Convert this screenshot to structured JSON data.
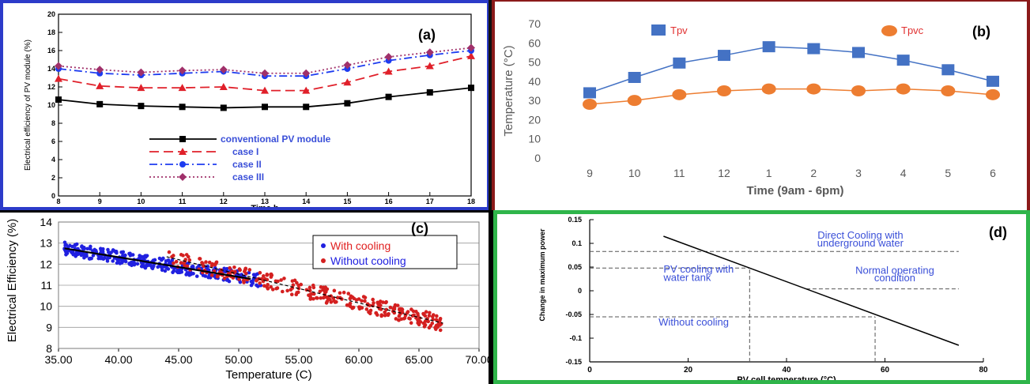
{
  "chart_data": [
    {
      "panel": "(a)",
      "type": "line",
      "title": "",
      "xlabel": "Time h",
      "ylabel": "Electrical efficiency of PV module (%)",
      "xlim": [
        8,
        18
      ],
      "ylim": [
        0,
        20
      ],
      "x_ticks": [
        "8",
        "9",
        "10",
        "11",
        "12",
        "13",
        "14",
        "15",
        "16",
        "17",
        "18"
      ],
      "y_ticks": [
        "0",
        "2",
        "4",
        "6",
        "8",
        "10",
        "12",
        "14",
        "16",
        "18",
        "20"
      ],
      "x": [
        8,
        9,
        10,
        11,
        12,
        13,
        14,
        15,
        16,
        17,
        18
      ],
      "series": [
        {
          "name": "conventional PV module",
          "color": "#000000",
          "style": "solid",
          "marker": "square",
          "values": [
            10.6,
            10.1,
            9.9,
            9.8,
            9.7,
            9.8,
            9.8,
            10.2,
            10.9,
            11.4,
            11.9
          ]
        },
        {
          "name": "case I",
          "color": "#e0202a",
          "style": "dashed",
          "marker": "triangle",
          "values": [
            12.9,
            12.1,
            11.9,
            11.9,
            12.0,
            11.6,
            11.6,
            12.5,
            13.7,
            14.3,
            15.4
          ]
        },
        {
          "name": "case II",
          "color": "#1e3cf0",
          "style": "dashdot",
          "marker": "circle",
          "values": [
            14.0,
            13.5,
            13.3,
            13.5,
            13.7,
            13.2,
            13.2,
            14.0,
            14.9,
            15.5,
            16.0
          ]
        },
        {
          "name": "case III",
          "color": "#a0306a",
          "style": "dotted",
          "marker": "diamond",
          "values": [
            14.3,
            13.9,
            13.6,
            13.8,
            13.9,
            13.5,
            13.5,
            14.4,
            15.3,
            15.8,
            16.3
          ]
        }
      ],
      "legend": "bottom-center",
      "grid": false
    },
    {
      "panel": "(b)",
      "type": "line",
      "title": "",
      "xlabel": "Time (9am - 6pm)",
      "ylabel": "Temperature (°C)",
      "ylim": [
        0,
        70
      ],
      "categories": [
        "9",
        "10",
        "11",
        "12",
        "1",
        "2",
        "3",
        "4",
        "5",
        "6"
      ],
      "y_ticks": [
        "0",
        "10",
        "20",
        "30",
        "40",
        "50",
        "60",
        "70"
      ],
      "series": [
        {
          "name": "Tpv",
          "color": "#4472c4",
          "marker": "square",
          "values": [
            34,
            42,
            49.5,
            53.5,
            58,
            57,
            55,
            51,
            46,
            40
          ]
        },
        {
          "name": "Tpvc",
          "color": "#ed7d31",
          "marker": "circle",
          "values": [
            28,
            30,
            33,
            35,
            36,
            36,
            35,
            36,
            35,
            33
          ]
        }
      ],
      "legend": "top",
      "grid": false
    },
    {
      "panel": "(c)",
      "type": "scatter",
      "title": "",
      "xlabel": "Temperature (C)",
      "ylabel": "Electrical Efficiency (%)",
      "xlim": [
        35,
        70
      ],
      "ylim": [
        8,
        14
      ],
      "x_ticks": [
        "35.00",
        "40.00",
        "45.00",
        "50.00",
        "55.00",
        "60.00",
        "65.00",
        "70.00"
      ],
      "y_ticks": [
        "8",
        "9",
        "10",
        "11",
        "12",
        "13",
        "14"
      ],
      "series": [
        {
          "name": "With cooling",
          "color": "#2020e0",
          "x_range": [
            35.5,
            52
          ],
          "trend": [
            [
              35.5,
              12.75
            ],
            [
              51,
              11.3
            ]
          ]
        },
        {
          "name": "Without cooling",
          "color": "#d42020",
          "x_range": [
            44,
            67
          ],
          "trend": [
            [
              44,
              12.35
            ],
            [
              67,
              9.2
            ]
          ]
        }
      ],
      "legend": "top-right",
      "grid": true
    },
    {
      "panel": "(d)",
      "type": "line",
      "title": "",
      "xlabel": "PV cell temperature (°C)",
      "ylabel": "Change in maximum power",
      "xlim": [
        0,
        80
      ],
      "ylim": [
        -0.15,
        0.15
      ],
      "x_ticks": [
        "0",
        "20",
        "40",
        "60",
        "80"
      ],
      "y_ticks": [
        "0.15",
        "0.1",
        "0.05",
        "0",
        "-0.05",
        "-0.1",
        "-0.15"
      ],
      "series": [
        {
          "name": "",
          "color": "#000000",
          "x": [
            15,
            75
          ],
          "values": [
            0.115,
            -0.115
          ]
        }
      ],
      "annotations": [
        {
          "text": "Direct Cooling with",
          "x": 55,
          "y": 0.11
        },
        {
          "text": "underground water",
          "x": 55,
          "y": 0.093
        },
        {
          "text": "PV cooling with",
          "x": 15,
          "y": 0.038
        },
        {
          "text": "water tank",
          "x": 15,
          "y": 0.021
        },
        {
          "text": "Normal operating",
          "x": 62,
          "y": 0.036
        },
        {
          "text": "condition",
          "x": 62,
          "y": 0.02
        },
        {
          "text": "Without cooling",
          "x": 14,
          "y": -0.073
        }
      ],
      "reference_lines": [
        {
          "y": 0.083,
          "x": [
            0,
            75
          ],
          "style": "dashed"
        },
        {
          "y": 0.048,
          "x": [
            0,
            32.5
          ],
          "style": "dashed"
        },
        {
          "y": 0.004,
          "x": [
            44,
            75
          ],
          "style": "dashed"
        },
        {
          "y": -0.055,
          "x": [
            0,
            58
          ],
          "style": "dashed"
        },
        {
          "x": 32.5,
          "y": [
            -0.15,
            0.048
          ],
          "style": "dashed"
        },
        {
          "x": 58,
          "y": [
            -0.15,
            -0.055
          ],
          "style": "dashed"
        }
      ],
      "grid": false
    }
  ],
  "labels": {
    "a": "(a)",
    "b": "(b)",
    "c": "(c)",
    "d": "(d)"
  }
}
